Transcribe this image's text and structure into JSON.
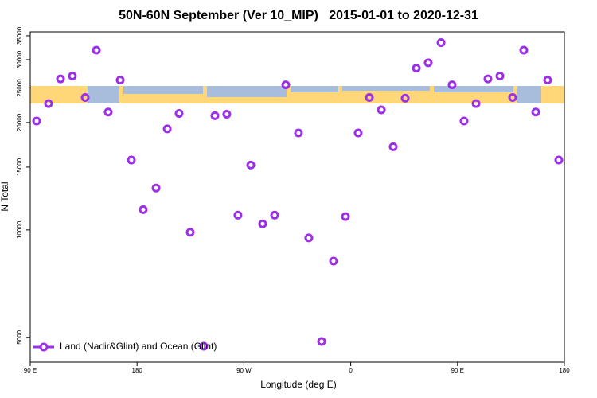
{
  "chart_data": {
    "type": "scatter",
    "title": "50N-60N September (Ver 10_MIP)   2015-01-01 to 2020-12-31",
    "x_label": "Longitude (deg E)",
    "y_label": "N Total",
    "log_y": true,
    "legend": "bottom-left",
    "xlim": [
      90,
      540
    ],
    "ylim": [
      4260,
      35900
    ],
    "xticks": [
      {
        "value": 90,
        "label": "90 E"
      },
      180,
      {
        "value": 270,
        "label": "90 W"
      },
      {
        "value": 360,
        "label": "0"
      },
      {
        "value": 450,
        "label": "90 E"
      },
      {
        "value": 540,
        "label": "180"
      }
    ],
    "yticks": [
      5000,
      10000,
      15000,
      20000,
      25000,
      30000,
      35000
    ],
    "series": [
      {
        "name": "Land (Nadir&Glint) and Ocean (Glint)",
        "color": "#9b30e8",
        "x": [
          95.4,
          105.4,
          115.5,
          125.5,
          136.3,
          145.7,
          155.7,
          165.8,
          175.2,
          185.2,
          196,
          205.4,
          215.4,
          224.8,
          236.2,
          245.6,
          255.6,
          265,
          275.8,
          285.8,
          295.9,
          305.3,
          316,
          324.7,
          335.5,
          345.5,
          355.6,
          366.3,
          375.7,
          385.8,
          395.8,
          405.9,
          415.3,
          425.3,
          436.1,
          445.4,
          455.5,
          465.6,
          475.6,
          485.7,
          496.4,
          505.8,
          515.9,
          525.9,
          535.3
        ],
        "values": [
          20200,
          22600,
          26500,
          27000,
          23500,
          31900,
          21400,
          26300,
          15700,
          11400,
          13100,
          19200,
          21200,
          9850,
          4720,
          20900,
          21100,
          11000,
          15200,
          10400,
          11000,
          25500,
          18700,
          9500,
          4870,
          8180,
          10900,
          18700,
          23500,
          21700,
          17100,
          23400,
          28400,
          29400,
          33500,
          25500,
          20200,
          22600,
          26500,
          27000,
          23500,
          31900,
          21400,
          26300,
          15700
        ]
      }
    ]
  }
}
